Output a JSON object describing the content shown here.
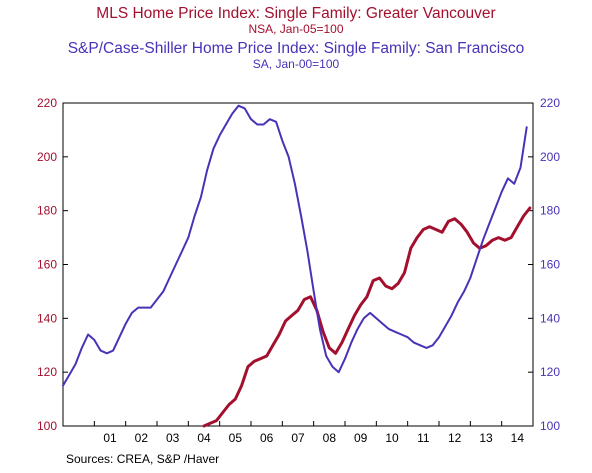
{
  "chart_data": {
    "type": "line",
    "title": "MLS Home Price Index: Single Family: Greater Vancouver",
    "subtitle": "NSA, Jan-05=100",
    "title2": "S&P/Case-Shiller Home Price Index: Single Family: San Francisco",
    "subtitle2": "SA, Jan-00=100",
    "source": "Sources:  CREA, S&P /Haver",
    "xlabel": "",
    "ylabel": "",
    "xlim": [
      2000.0,
      2015.0
    ],
    "ylim_left": [
      100,
      220
    ],
    "ylim_right": [
      100,
      220
    ],
    "y_ticks": [
      100,
      120,
      140,
      160,
      180,
      200,
      220
    ],
    "x_ticks": [
      "01",
      "02",
      "03",
      "04",
      "05",
      "06",
      "07",
      "08",
      "09",
      "10",
      "11",
      "12",
      "13",
      "14"
    ],
    "x_tick_years": [
      2001,
      2002,
      2003,
      2004,
      2005,
      2006,
      2007,
      2008,
      2009,
      2010,
      2011,
      2012,
      2013,
      2014
    ],
    "grid": false,
    "legend": "none",
    "colors": {
      "vancouver": "#a3102e",
      "sf": "#4a32b8",
      "axis": "#000000"
    },
    "series": [
      {
        "name": "MLS Home Price Index: Single Family: Greater Vancouver",
        "axis": "left",
        "color": "#a3102e",
        "x": [
          2004.5,
          2004.7,
          2004.9,
          2005.1,
          2005.3,
          2005.5,
          2005.7,
          2005.9,
          2006.1,
          2006.3,
          2006.5,
          2006.7,
          2006.9,
          2007.1,
          2007.3,
          2007.5,
          2007.7,
          2007.9,
          2008.1,
          2008.3,
          2008.5,
          2008.7,
          2008.9,
          2009.1,
          2009.3,
          2009.5,
          2009.7,
          2009.9,
          2010.1,
          2010.3,
          2010.5,
          2010.7,
          2010.9,
          2011.1,
          2011.3,
          2011.5,
          2011.7,
          2011.9,
          2012.1,
          2012.3,
          2012.5,
          2012.7,
          2012.9,
          2013.1,
          2013.3,
          2013.5,
          2013.7,
          2013.9,
          2014.1,
          2014.3,
          2014.5,
          2014.7,
          2014.9
        ],
        "values": [
          100,
          101,
          102,
          105,
          108,
          110,
          115,
          122,
          124,
          125,
          126,
          130,
          134,
          139,
          141,
          143,
          147,
          148,
          143,
          135,
          129,
          127,
          131,
          136,
          141,
          145,
          148,
          154,
          155,
          152,
          151,
          153,
          157,
          166,
          170,
          173,
          174,
          173,
          172,
          176,
          177,
          175,
          172,
          168,
          166,
          167,
          169,
          170,
          169,
          170,
          174,
          178,
          181
        ]
      },
      {
        "name": "S&P/Case-Shiller Home Price Index: Single Family: San Francisco",
        "axis": "right",
        "color": "#4a32b8",
        "x": [
          2000.0,
          2000.2,
          2000.4,
          2000.6,
          2000.8,
          2001.0,
          2001.2,
          2001.4,
          2001.6,
          2001.8,
          2002.0,
          2002.2,
          2002.4,
          2002.6,
          2002.8,
          2003.0,
          2003.2,
          2003.4,
          2003.6,
          2003.8,
          2004.0,
          2004.2,
          2004.4,
          2004.6,
          2004.8,
          2005.0,
          2005.2,
          2005.4,
          2005.6,
          2005.8,
          2006.0,
          2006.2,
          2006.4,
          2006.6,
          2006.8,
          2007.0,
          2007.2,
          2007.4,
          2007.6,
          2007.8,
          2008.0,
          2008.2,
          2008.4,
          2008.6,
          2008.8,
          2009.0,
          2009.2,
          2009.4,
          2009.6,
          2009.8,
          2010.0,
          2010.2,
          2010.4,
          2010.6,
          2010.8,
          2011.0,
          2011.2,
          2011.4,
          2011.6,
          2011.8,
          2012.0,
          2012.2,
          2012.4,
          2012.6,
          2012.8,
          2013.0,
          2013.2,
          2013.4,
          2013.6,
          2013.8,
          2014.0,
          2014.2,
          2014.4,
          2014.6,
          2014.8
        ],
        "values": [
          115,
          119,
          123,
          129,
          134,
          132,
          128,
          127,
          128,
          133,
          138,
          142,
          144,
          144,
          144,
          147,
          150,
          155,
          160,
          165,
          170,
          178,
          185,
          195,
          203,
          208,
          212,
          216,
          219,
          218,
          214,
          212,
          212,
          214,
          213,
          206,
          200,
          190,
          178,
          165,
          150,
          136,
          126,
          122,
          120,
          125,
          131,
          136,
          140,
          142,
          140,
          138,
          136,
          135,
          134,
          133,
          131,
          130,
          129,
          130,
          133,
          137,
          141,
          146,
          150,
          155,
          162,
          169,
          175,
          181,
          187,
          192,
          190,
          196,
          211
        ]
      }
    ]
  }
}
